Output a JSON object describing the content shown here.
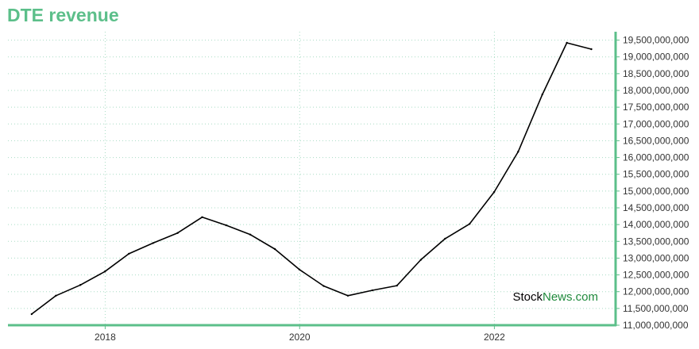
{
  "title": "DTE revenue",
  "watermark": {
    "part1": "Stock",
    "part2": "News.com"
  },
  "colors": {
    "accent": "#5cbf8a",
    "line": "#000000",
    "grid": "#a8dcc4",
    "watermark_dark": "#000000",
    "watermark_green": "#1f8a3c"
  },
  "chart_data": {
    "type": "line",
    "title": "DTE revenue",
    "xlabel": "",
    "ylabel": "",
    "xlim": [
      "2017-01-01",
      "2023-04-01"
    ],
    "ylim": [
      11000000000,
      19750000000
    ],
    "x_ticks": [
      {
        "date": "2018-01-01",
        "label": "2018"
      },
      {
        "date": "2020-01-01",
        "label": "2020"
      },
      {
        "date": "2022-01-01",
        "label": "2022"
      }
    ],
    "y_ticks": [
      11000000000,
      11500000000,
      12000000000,
      12500000000,
      13000000000,
      13500000000,
      14000000000,
      14500000000,
      15000000000,
      15500000000,
      16000000000,
      16500000000,
      17000000000,
      17500000000,
      18000000000,
      18500000000,
      19000000000,
      19500000000
    ],
    "y_tick_labels": [
      "11,000,000,000",
      "11,500,000,000",
      "12,000,000,000",
      "12,500,000,000",
      "13,000,000,000",
      "13,500,000,000",
      "14,000,000,000",
      "14,500,000,000",
      "15,000,000,000",
      "15,500,000,000",
      "16,000,000,000",
      "16,500,000,000",
      "17,000,000,000",
      "17,500,000,000",
      "18,000,000,000",
      "18,500,000,000",
      "19,000,000,000",
      "19,500,000,000"
    ],
    "grid": true,
    "series": [
      {
        "points": [
          {
            "x": "2017-03-31",
            "y": 11330000000
          },
          {
            "x": "2017-06-30",
            "y": 11880000000
          },
          {
            "x": "2017-09-30",
            "y": 12200000000
          },
          {
            "x": "2017-12-31",
            "y": 12600000000
          },
          {
            "x": "2018-03-31",
            "y": 13130000000
          },
          {
            "x": "2018-06-30",
            "y": 13450000000
          },
          {
            "x": "2018-09-30",
            "y": 13750000000
          },
          {
            "x": "2018-12-31",
            "y": 14220000000
          },
          {
            "x": "2019-03-31",
            "y": 13980000000
          },
          {
            "x": "2019-06-30",
            "y": 13700000000
          },
          {
            "x": "2019-09-30",
            "y": 13270000000
          },
          {
            "x": "2019-12-31",
            "y": 12660000000
          },
          {
            "x": "2020-03-31",
            "y": 12170000000
          },
          {
            "x": "2020-06-30",
            "y": 11880000000
          },
          {
            "x": "2020-09-30",
            "y": 12040000000
          },
          {
            "x": "2020-12-31",
            "y": 12180000000
          },
          {
            "x": "2021-03-31",
            "y": 12950000000
          },
          {
            "x": "2021-06-30",
            "y": 13580000000
          },
          {
            "x": "2021-09-30",
            "y": 14020000000
          },
          {
            "x": "2021-12-31",
            "y": 14970000000
          },
          {
            "x": "2022-03-31",
            "y": 16170000000
          },
          {
            "x": "2022-06-30",
            "y": 17880000000
          },
          {
            "x": "2022-09-30",
            "y": 19420000000
          },
          {
            "x": "2022-12-31",
            "y": 19230000000
          }
        ]
      }
    ]
  }
}
